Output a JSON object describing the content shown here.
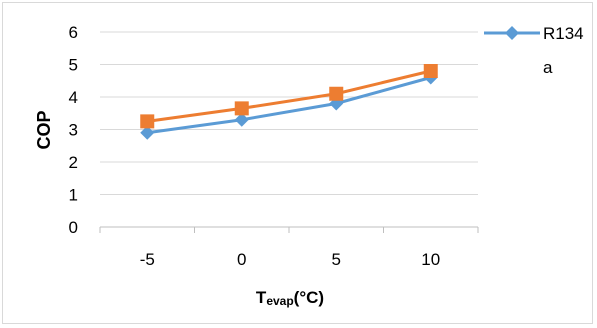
{
  "chart_data": {
    "type": "line",
    "categories": [
      "-5",
      "0",
      "5",
      "10"
    ],
    "series": [
      {
        "name": "R134a",
        "legend_lines": [
          "R134",
          "a"
        ],
        "color": "#5b9bd5",
        "marker": "diamond",
        "values": [
          2.9,
          3.3,
          3.8,
          4.6
        ]
      },
      {
        "color": "#ed7d31",
        "marker": "square",
        "values": [
          3.25,
          3.65,
          4.1,
          4.8
        ]
      }
    ],
    "ylabel": "COP",
    "xlabel_main": "T",
    "xlabel_sub": "evap",
    "xlabel_unit": "(°C)",
    "ylim": [
      0,
      6
    ],
    "yticks": [
      "0",
      "1",
      "2",
      "3",
      "4",
      "5",
      "6"
    ],
    "grid": true,
    "legend_position": "right"
  }
}
